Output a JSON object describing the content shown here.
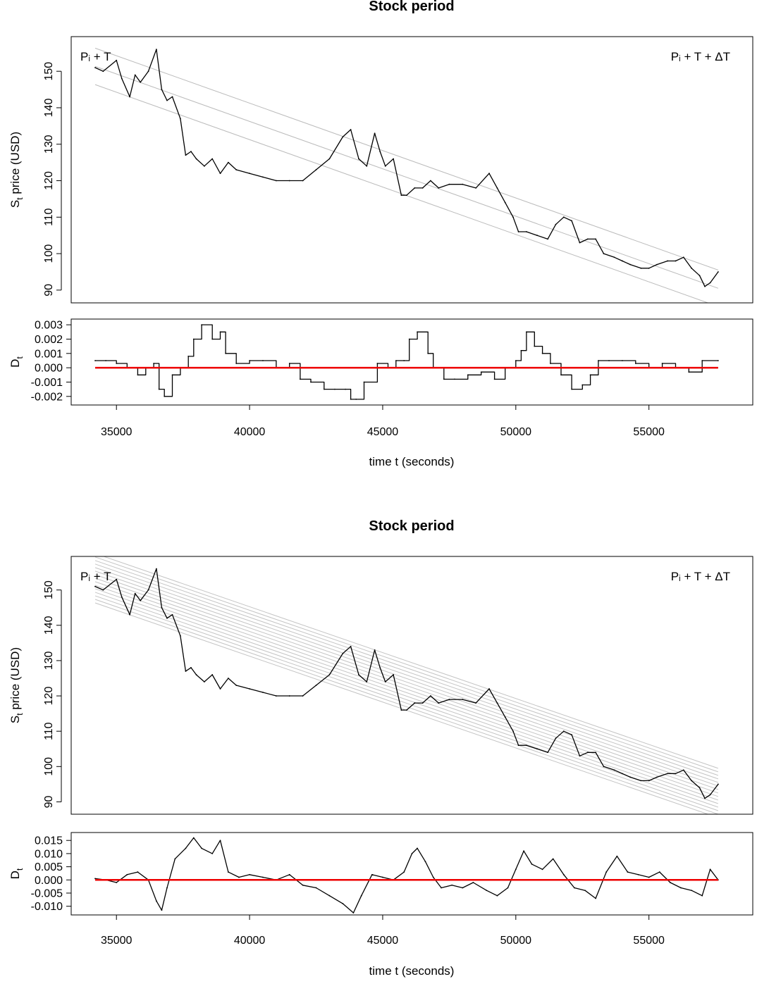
{
  "chart_data": [
    {
      "type": "line",
      "title": "Stock period",
      "xlabel": "time t (seconds)",
      "x_ticks": [
        35000,
        40000,
        45000,
        50000,
        55000
      ],
      "xlim": [
        33300,
        58900
      ],
      "price_panel": {
        "ylabel_main": "S",
        "ylabel_sub": "t",
        "ylabel_rest": " price (USD)",
        "ylim": [
          86.5,
          159.5
        ],
        "y_ticks": [
          90,
          100,
          110,
          120,
          130,
          140,
          150
        ],
        "start_label": "Pᵢ + T",
        "end_label": "Pᵢ + T + ΔT",
        "guide_line_slope_per_second": -0.0026,
        "guide_line_spacing": 5,
        "guide_color": "#bbbbbb",
        "series": [
          {
            "name": "S_t",
            "color": "#000000",
            "x": [
              34200,
              34500,
              35000,
              35200,
              35500,
              35700,
              35900,
              36200,
              36500,
              36700,
              36900,
              37100,
              37400,
              37600,
              37800,
              38000,
              38300,
              38600,
              38900,
              39200,
              39500,
              40000,
              40500,
              41000,
              41500,
              42000,
              42500,
              43000,
              43500,
              43800,
              44100,
              44400,
              44700,
              44900,
              45100,
              45400,
              45700,
              45900,
              46200,
              46500,
              46800,
              47100,
              47500,
              48000,
              48500,
              49000,
              49300,
              49600,
              49900,
              50100,
              50400,
              50800,
              51200,
              51500,
              51800,
              52100,
              52400,
              52700,
              53000,
              53300,
              53700,
              54000,
              54300,
              54700,
              55000,
              55300,
              55700,
              56000,
              56300,
              56600,
              56900,
              57100,
              57300,
              57600
            ],
            "values": [
              151,
              150,
              153,
              148,
              143,
              149,
              147,
              150,
              156,
              145,
              142,
              143,
              137,
              127,
              128,
              126,
              124,
              126,
              122,
              125,
              123,
              122,
              121,
              120,
              120,
              120,
              123,
              126,
              132,
              134,
              126,
              124,
              133,
              128,
              124,
              126,
              116,
              116,
              118,
              118,
              120,
              118,
              119,
              119,
              118,
              122,
              118,
              114,
              110,
              106,
              106,
              105,
              104,
              108,
              110,
              109,
              103,
              104,
              104,
              100,
              99,
              98,
              97,
              96,
              96,
              97,
              98,
              98,
              99,
              96,
              94,
              91,
              92,
              95
            ]
          }
        ]
      },
      "d_panel": {
        "ylabel_main": "D",
        "ylabel_sub": "t",
        "ylim": [
          -0.0026,
          0.0034
        ],
        "y_ticks": [
          -0.002,
          -0.001,
          0.0,
          0.001,
          0.002,
          0.003
        ],
        "y_tick_labels": [
          "-0.002",
          "-0.001",
          "0.000",
          "0.001",
          "0.002",
          "0.003"
        ],
        "zero_line_color": "#ee0000",
        "series": [
          {
            "name": "D_t",
            "color": "#000000",
            "x": [
              34200,
              34600,
              35000,
              35400,
              35800,
              36100,
              36400,
              36600,
              36800,
              37100,
              37400,
              37700,
              37900,
              38200,
              38600,
              38900,
              39100,
              39500,
              40000,
              40500,
              41000,
              41500,
              41900,
              42300,
              42800,
              43200,
              43600,
              43800,
              44000,
              44300,
              44800,
              45200,
              45500,
              45800,
              46000,
              46300,
              46700,
              46900,
              47300,
              47700,
              48200,
              48700,
              49200,
              49600,
              50000,
              50200,
              50400,
              50700,
              51000,
              51300,
              51700,
              52100,
              52500,
              52800,
              53100,
              53500,
              54000,
              54500,
              55000,
              55500,
              56000,
              56500,
              57000,
              57600
            ],
            "values": [
              0.0005,
              0.0005,
              0.0003,
              0.0,
              -0.0005,
              0.0,
              0.0003,
              -0.0015,
              -0.002,
              -0.0005,
              0.0,
              0.0008,
              0.002,
              0.003,
              0.002,
              0.0025,
              0.001,
              0.0003,
              0.0005,
              0.0005,
              0.0,
              0.0003,
              -0.0008,
              -0.001,
              -0.0015,
              -0.0015,
              -0.0015,
              -0.0022,
              -0.0022,
              -0.001,
              0.0003,
              0.0,
              0.0005,
              0.0005,
              0.002,
              0.0025,
              0.001,
              0.0,
              -0.0008,
              -0.0008,
              -0.0005,
              -0.0003,
              -0.0008,
              0.0,
              0.0005,
              0.0012,
              0.0025,
              0.0015,
              0.001,
              0.0003,
              -0.0005,
              -0.0015,
              -0.0012,
              -0.0005,
              0.0005,
              0.0005,
              0.0005,
              0.0003,
              0.0,
              0.0003,
              0.0,
              -0.0003,
              0.0005,
              0.0005
            ]
          }
        ]
      }
    },
    {
      "type": "line",
      "title": "Stock period",
      "xlabel": "time t (seconds)",
      "x_ticks": [
        35000,
        40000,
        45000,
        50000,
        55000
      ],
      "xlim": [
        33300,
        58900
      ],
      "price_panel": {
        "ylabel_main": "S",
        "ylabel_sub": "t",
        "ylabel_rest": " price (USD)",
        "ylim": [
          86.5,
          159.5
        ],
        "y_ticks": [
          90,
          100,
          110,
          120,
          130,
          140,
          150
        ],
        "start_label": "Pᵢ + T",
        "end_label": "Pᵢ + T + ΔT",
        "guide_line_slope_per_second": -0.0026,
        "guide_line_spacing": 1,
        "guide_color": "#c4c4c4",
        "series": [
          {
            "name": "S_t",
            "color": "#000000",
            "x": [
              34200,
              34500,
              35000,
              35200,
              35500,
              35700,
              35900,
              36200,
              36500,
              36700,
              36900,
              37100,
              37400,
              37600,
              37800,
              38000,
              38300,
              38600,
              38900,
              39200,
              39500,
              40000,
              40500,
              41000,
              41500,
              42000,
              42500,
              43000,
              43500,
              43800,
              44100,
              44400,
              44700,
              44900,
              45100,
              45400,
              45700,
              45900,
              46200,
              46500,
              46800,
              47100,
              47500,
              48000,
              48500,
              49000,
              49300,
              49600,
              49900,
              50100,
              50400,
              50800,
              51200,
              51500,
              51800,
              52100,
              52400,
              52700,
              53000,
              53300,
              53700,
              54000,
              54300,
              54700,
              55000,
              55300,
              55700,
              56000,
              56300,
              56600,
              56900,
              57100,
              57300,
              57600
            ],
            "values": [
              151,
              150,
              153,
              148,
              143,
              149,
              147,
              150,
              156,
              145,
              142,
              143,
              137,
              127,
              128,
              126,
              124,
              126,
              122,
              125,
              123,
              122,
              121,
              120,
              120,
              120,
              123,
              126,
              132,
              134,
              126,
              124,
              133,
              128,
              124,
              126,
              116,
              116,
              118,
              118,
              120,
              118,
              119,
              119,
              118,
              122,
              118,
              114,
              110,
              106,
              106,
              105,
              104,
              108,
              110,
              109,
              103,
              104,
              104,
              100,
              99,
              98,
              97,
              96,
              96,
              97,
              98,
              98,
              99,
              96,
              94,
              91,
              92,
              95
            ]
          }
        ]
      },
      "d_panel": {
        "ylabel_main": "D",
        "ylabel_sub": "t",
        "ylim": [
          -0.0133,
          0.018
        ],
        "y_ticks": [
          -0.01,
          -0.005,
          0.0,
          0.005,
          0.01,
          0.015
        ],
        "y_tick_labels": [
          "-0.010",
          "-0.005",
          "0.000",
          "0.005",
          "0.010",
          "0.015"
        ],
        "zero_line_color": "#ee0000",
        "series": [
          {
            "name": "D_t",
            "color": "#000000",
            "x": [
              34200,
              34600,
              35000,
              35400,
              35800,
              36200,
              36500,
              36700,
              36900,
              37200,
              37600,
              37900,
              38200,
              38600,
              38900,
              39200,
              39600,
              40000,
              40500,
              41000,
              41500,
              42000,
              42500,
              43000,
              43500,
              43900,
              44200,
              44600,
              45000,
              45400,
              45800,
              46100,
              46300,
              46600,
              46900,
              47200,
              47600,
              48000,
              48400,
              48900,
              49300,
              49700,
              50000,
              50300,
              50600,
              51000,
              51400,
              51800,
              52200,
              52600,
              53000,
              53400,
              53800,
              54200,
              54600,
              55000,
              55400,
              55800,
              56200,
              56600,
              57000,
              57300,
              57600
            ],
            "values": [
              0.0005,
              0.0,
              -0.001,
              0.002,
              0.003,
              0.0,
              -0.008,
              -0.0115,
              -0.003,
              0.008,
              0.012,
              0.016,
              0.012,
              0.01,
              0.015,
              0.003,
              0.001,
              0.002,
              0.001,
              0.0,
              0.002,
              -0.002,
              -0.003,
              -0.006,
              -0.009,
              -0.0125,
              -0.006,
              0.002,
              0.001,
              0.0,
              0.003,
              0.01,
              0.012,
              0.007,
              0.001,
              -0.003,
              -0.002,
              -0.003,
              -0.001,
              -0.004,
              -0.006,
              -0.003,
              0.004,
              0.011,
              0.006,
              0.004,
              0.008,
              0.002,
              -0.003,
              -0.004,
              -0.007,
              0.003,
              0.009,
              0.003,
              0.002,
              0.001,
              0.003,
              -0.001,
              -0.003,
              -0.004,
              -0.006,
              0.004,
              0.0
            ]
          }
        ]
      }
    }
  ]
}
